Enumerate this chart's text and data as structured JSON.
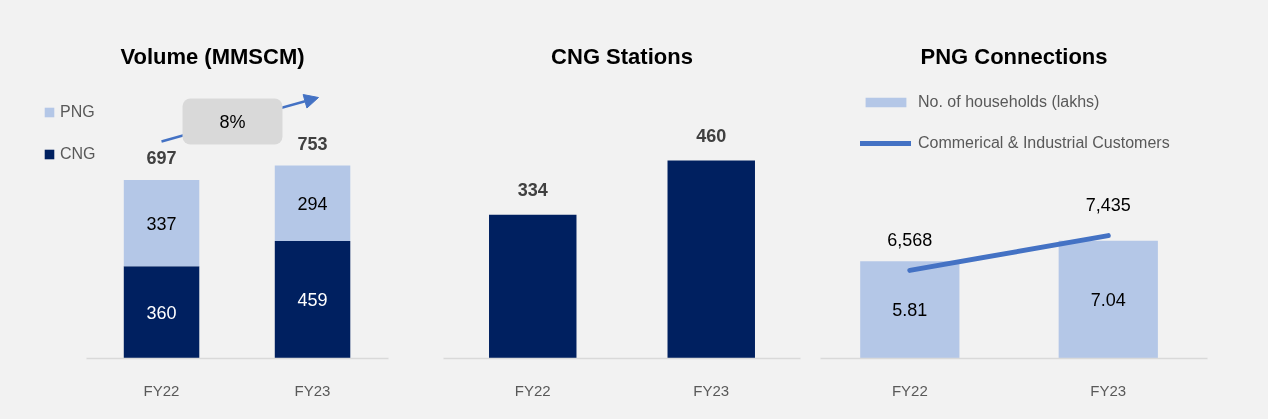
{
  "chart_data": [
    {
      "type": "bar",
      "title": "Volume (MMSCM)",
      "categories": [
        "FY22",
        "FY23"
      ],
      "stacked": true,
      "series": [
        {
          "name": "CNG",
          "color": "#002060",
          "values": [
            360,
            459
          ]
        },
        {
          "name": "PNG",
          "color": "#b4c7e7",
          "values": [
            337,
            294
          ]
        }
      ],
      "totals": [
        "697",
        "753"
      ],
      "data_labels": true,
      "tick_labels": "x",
      "grid": false,
      "legend": "top left",
      "annotations": [
        "8%"
      ]
    },
    {
      "type": "bar",
      "title": "CNG Stations",
      "categories": [
        "FY22",
        "FY23"
      ],
      "values": [
        334,
        460
      ],
      "color": "#002060",
      "data_labels": true,
      "tick_labels": "x",
      "grid": false
    },
    {
      "type": "bar",
      "title": "PNG Connections",
      "categories": [
        "FY22",
        "FY23"
      ],
      "series": [
        {
          "name": "No. of households (lakhs)",
          "color": "#b4c7e7",
          "values": [
            5.81,
            7.04
          ]
        },
        {
          "name": "Commerical & Industrial Customers",
          "type": "line",
          "axis": "y2",
          "color": "#4472c4",
          "values": [
            6568,
            7435
          ],
          "value_labels": [
            "6,568",
            "7,435"
          ]
        }
      ],
      "data_labels": true,
      "tick_labels": "x",
      "grid": false,
      "legend": "top left",
      "line_style": "solid"
    }
  ]
}
